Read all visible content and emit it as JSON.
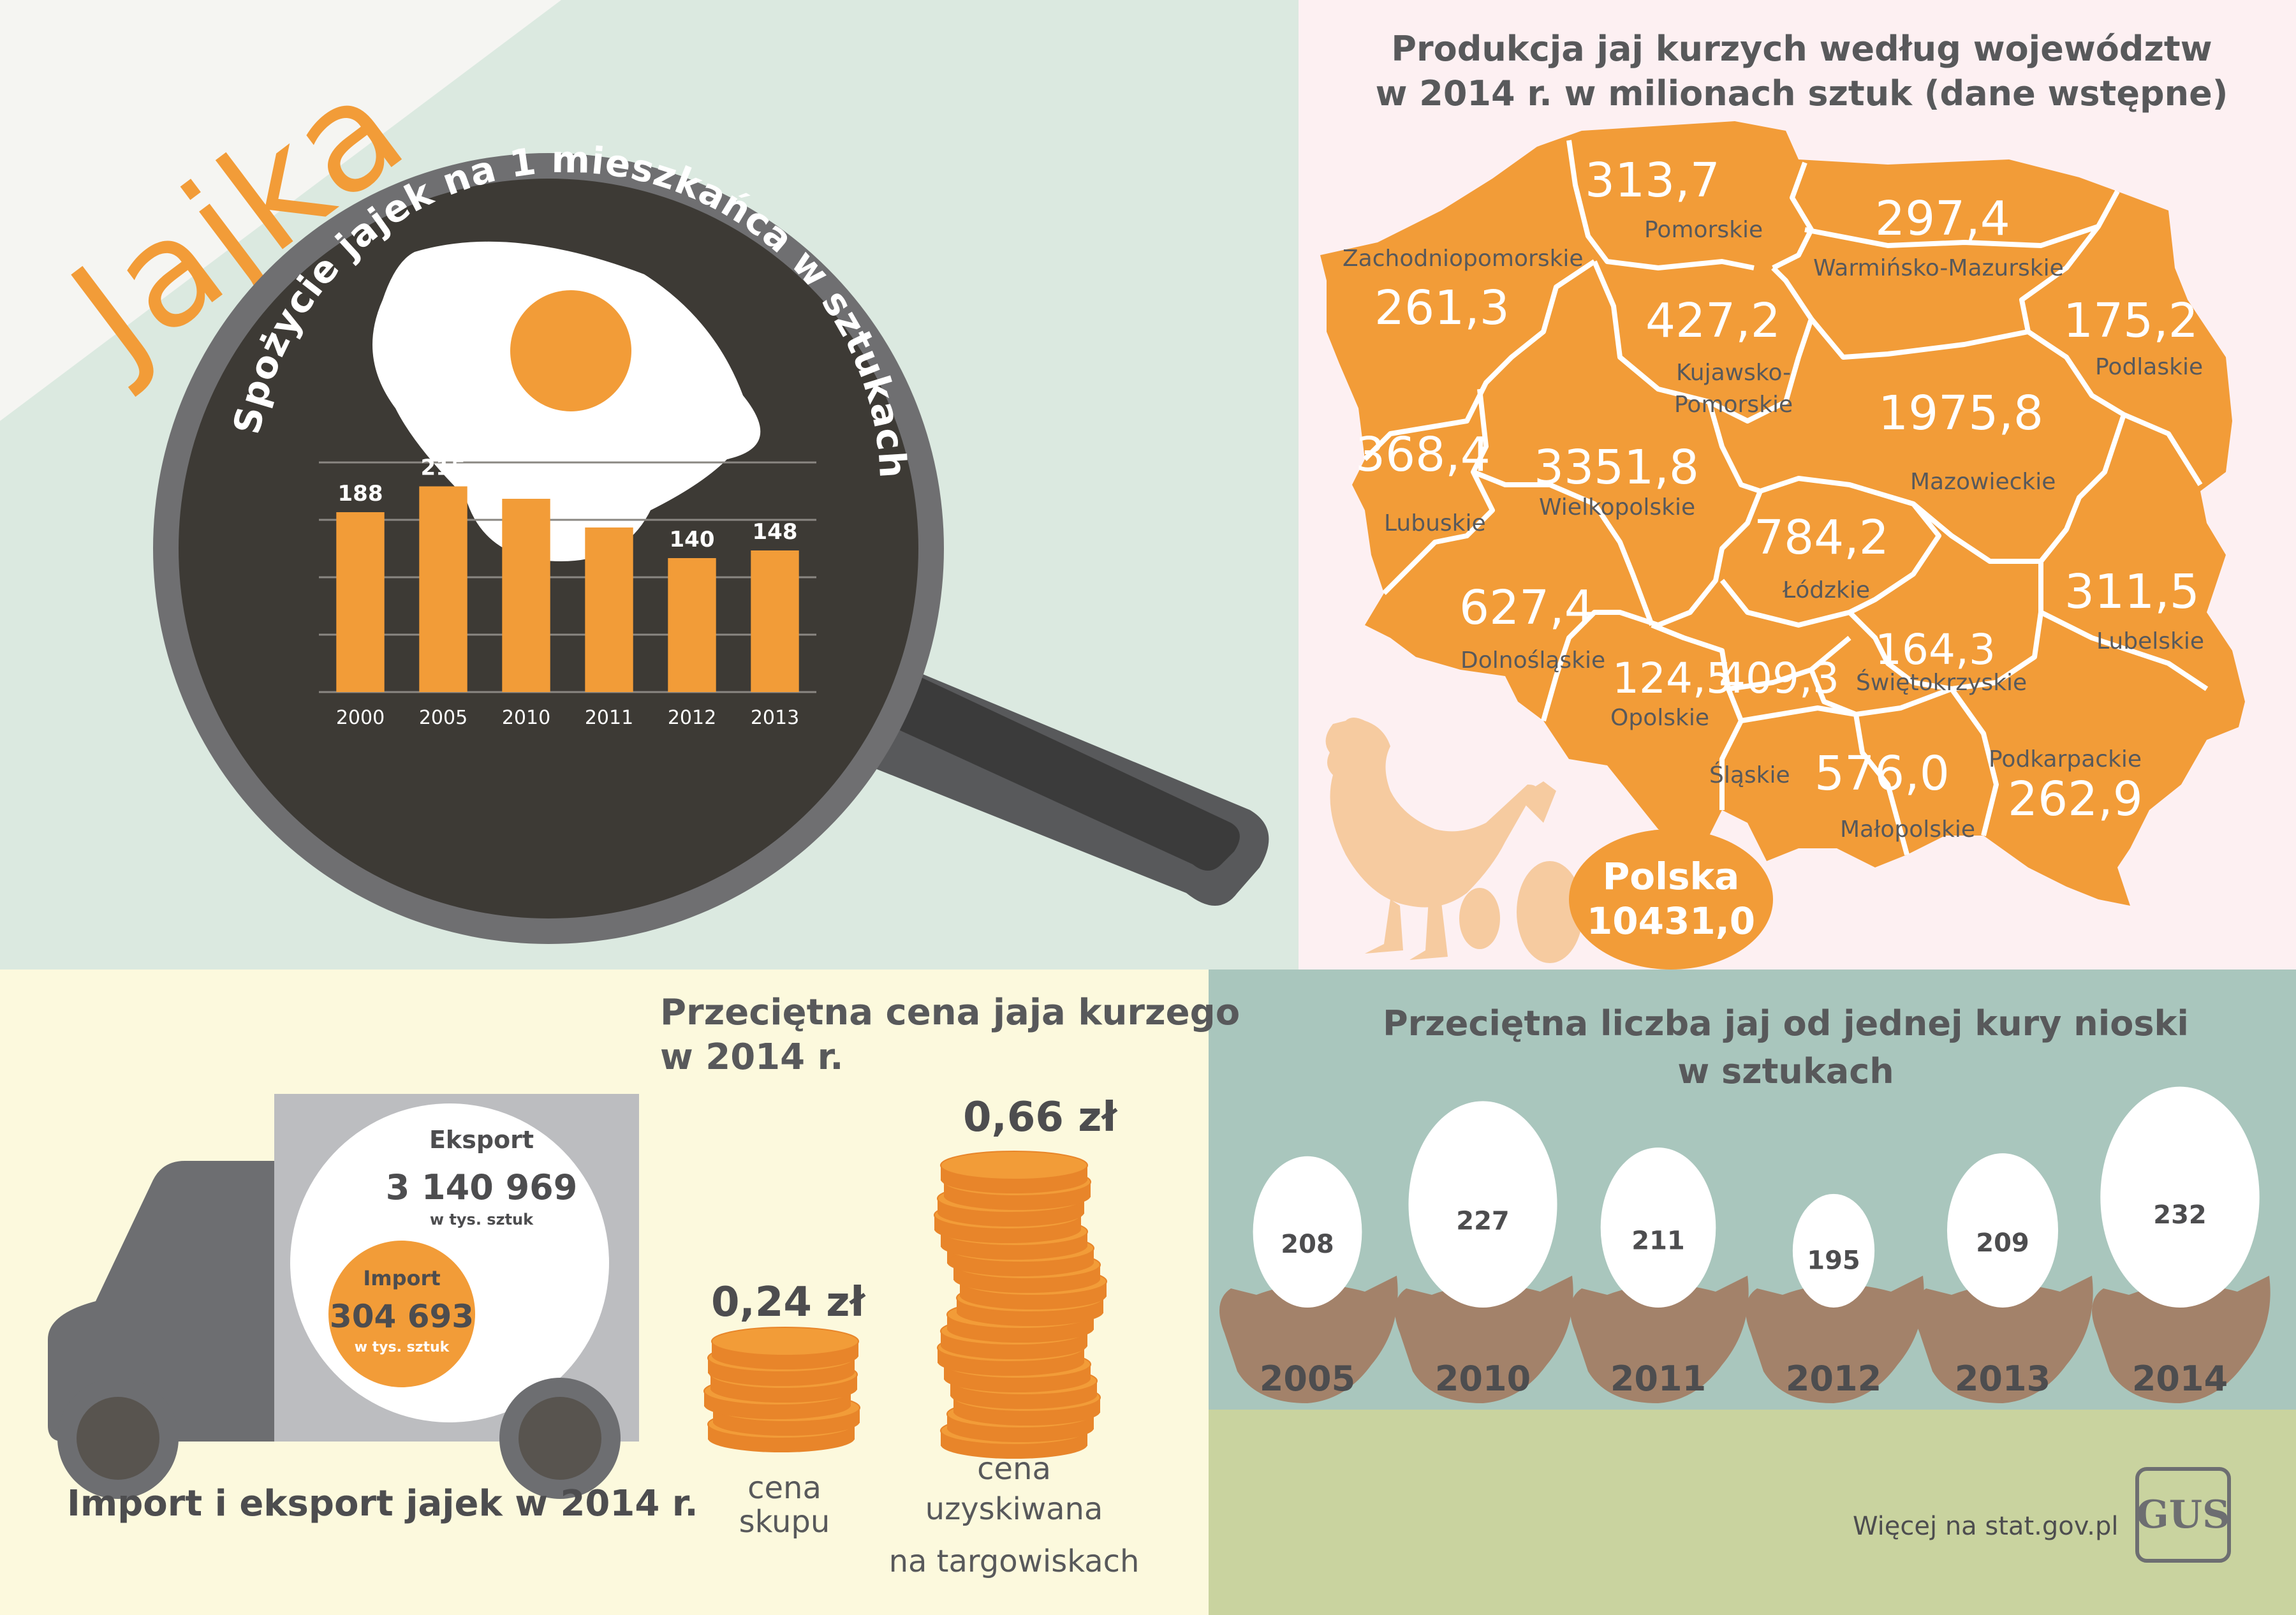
{
  "brand": {
    "title": "Jajka"
  },
  "consumption": {
    "title": "Spożycie jajek na 1 mieszkańca w sztukach",
    "chart_data": {
      "type": "bar",
      "title": "Spożycie jajek na 1 mieszkańca w sztukach",
      "categories": [
        "2000",
        "2005",
        "2010",
        "2011",
        "2012",
        "2013"
      ],
      "values": [
        188,
        215,
        202,
        172,
        140,
        148
      ],
      "ylim": [
        0,
        240
      ],
      "grid": true,
      "colors": {
        "bar": "#f29c38",
        "plot_bg": "#3d3a35"
      }
    }
  },
  "production": {
    "title_line1": "Produkcja jaj kurzych według województw",
    "title_line2": "w 2014 r.  w milionach sztuk  (dane wstępne)",
    "regions": [
      {
        "name": "Pomorskie",
        "value": "313,7"
      },
      {
        "name": "Warmińsko-Mazurskie",
        "value": "297,4"
      },
      {
        "name": "Zachodniopomorskie",
        "value": "261,3"
      },
      {
        "name": "Kujawsko-\nPomorskie",
        "value": "427,2"
      },
      {
        "name": "Podlaskie",
        "value": "175,2"
      },
      {
        "name": "Lubuskie",
        "value": "368,4"
      },
      {
        "name": "Wielkopolskie",
        "value": "3351,8"
      },
      {
        "name": "Mazowieckie",
        "value": "1975,8"
      },
      {
        "name": "Łódzkie",
        "value": "784,2"
      },
      {
        "name": "Dolnośląskie",
        "value": "627,4"
      },
      {
        "name": "Lubelskie",
        "value": "311,5"
      },
      {
        "name": "Opolskie",
        "value": "124,5"
      },
      {
        "name": "Śląskie",
        "value": "409,3"
      },
      {
        "name": "Świętokrzyskie",
        "value": "164,3"
      },
      {
        "name": "Małopolskie",
        "value": "576,0"
      },
      {
        "name": "Podkarpackie",
        "value": "262,9"
      }
    ],
    "total_label": "Polska",
    "total_value": "10431,0"
  },
  "trade": {
    "title": "Import i eksport jajek w 2014 r.",
    "export_label": "Eksport",
    "export_value": "3 140 969",
    "export_unit": "w tys. sztuk",
    "import_label": "Import",
    "import_value": "304 693",
    "import_unit": "w tys. sztuk"
  },
  "price": {
    "title_line1": "Przeciętna cena jaja kurzego",
    "title_line2": "w 2014 r.",
    "chart_data": {
      "type": "bar",
      "categories": [
        "cena skupu",
        "cena uzyskiwana na targowiskach"
      ],
      "values": [
        0.24,
        0.66
      ],
      "unit": "zł"
    },
    "purchase_value": "0,24 zł",
    "purchase_label_1": "cena",
    "purchase_label_2": "skupu",
    "market_value": "0,66 zł",
    "market_label_1": "cena",
    "market_label_2": "uzyskiwana",
    "market_label_3": "na targowiskach"
  },
  "laying": {
    "title_line1": "Przeciętna liczba jaj od jednej kury nioski",
    "title_line2": "w sztukach",
    "chart_data": {
      "type": "bar",
      "categories": [
        "2005",
        "2010",
        "2011",
        "2012",
        "2013",
        "2014"
      ],
      "values": [
        208,
        227,
        211,
        195,
        209,
        232
      ]
    }
  },
  "footer": {
    "more": "Więcej na stat.gov.pl",
    "logo": "GUS"
  }
}
